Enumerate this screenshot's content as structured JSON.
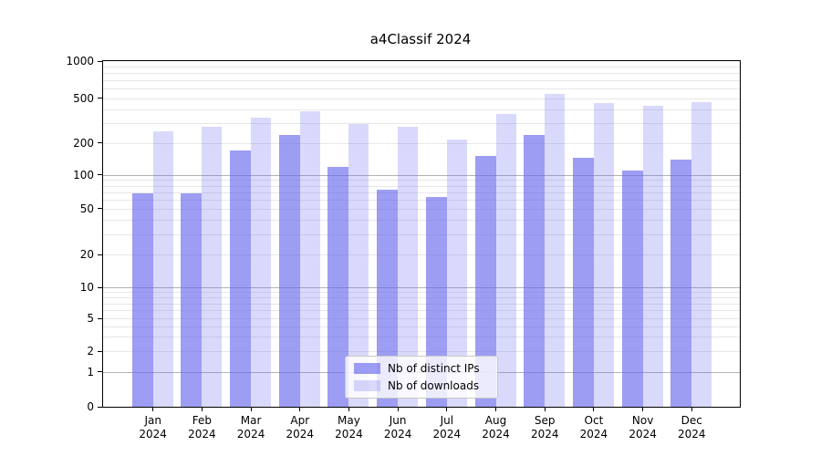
{
  "chart_data": {
    "type": "bar",
    "title": "a4Classif 2024",
    "categories": [
      "Jan 2024",
      "Feb 2024",
      "Mar 2024",
      "Apr 2024",
      "May 2024",
      "Jun 2024",
      "Jul 2024",
      "Aug 2024",
      "Sep 2024",
      "Oct 2024",
      "Nov 2024",
      "Dec 2024"
    ],
    "x_tick_months": [
      "Jan",
      "Feb",
      "Mar",
      "Apr",
      "May",
      "Jun",
      "Jul",
      "Aug",
      "Sep",
      "Oct",
      "Nov",
      "Dec"
    ],
    "x_tick_year": "2024",
    "series": [
      {
        "name": "Nb of distinct IPs",
        "color": "#6666ee",
        "alpha": 0.64,
        "values": [
          69,
          69,
          170,
          236,
          120,
          74,
          64,
          152,
          236,
          145,
          110,
          140
        ]
      },
      {
        "name": "Nb of downloads",
        "color": "#6666ee",
        "alpha": 0.25,
        "values": [
          252,
          280,
          334,
          384,
          295,
          280,
          216,
          362,
          538,
          453,
          426,
          462
        ]
      }
    ],
    "yscale": "symlog",
    "ylim": [
      0,
      1000
    ],
    "yticks": [
      0,
      1,
      2,
      5,
      10,
      20,
      50,
      100,
      200,
      500,
      1000
    ],
    "gridlines_major": [
      1,
      10,
      100
    ],
    "gridlines_minor": [
      2,
      3,
      4,
      5,
      6,
      7,
      8,
      9,
      20,
      30,
      40,
      50,
      60,
      70,
      80,
      90,
      200,
      300,
      400,
      500,
      600,
      700,
      800,
      900
    ],
    "grid": "on",
    "legend_position": "lower center inside"
  }
}
